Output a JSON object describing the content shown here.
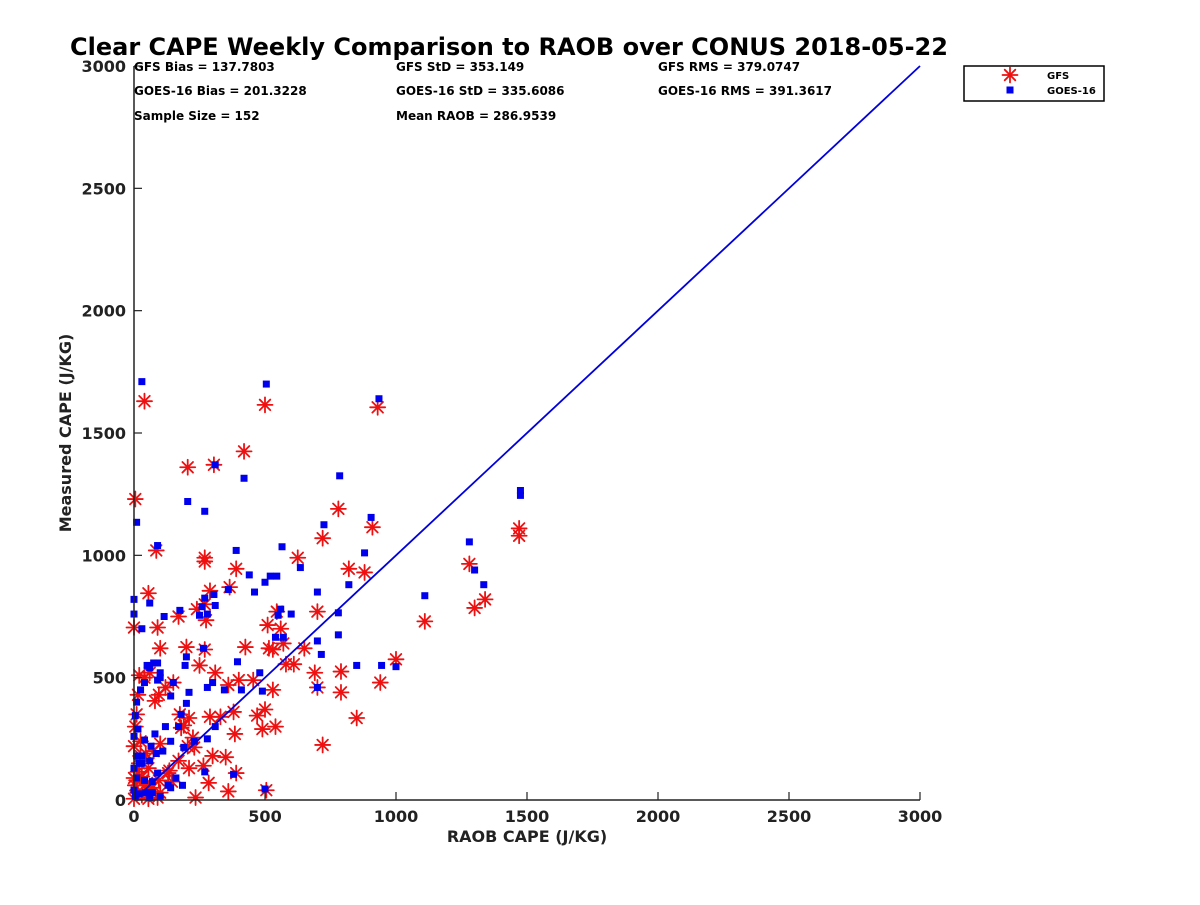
{
  "chart_data": {
    "type": "scatter",
    "title": "Clear CAPE Weekly Comparison to RAOB over CONUS 2018-05-22",
    "xlabel": "RAOB CAPE (J/KG)",
    "ylabel": "Measured CAPE (J/KG)",
    "xlim": [
      0,
      3000
    ],
    "ylim": [
      0,
      3000
    ],
    "x_ticks": [
      "0",
      "500",
      "1000",
      "1500",
      "2000",
      "2500",
      "3000"
    ],
    "y_ticks": [
      "0",
      "500",
      "1000",
      "1500",
      "2000",
      "2500",
      "3000"
    ],
    "stats": [
      "GFS Bias = 137.7803",
      "GFS StD = 353.149",
      "GFS RMS = 379.0747",
      "GOES-16 Bias = 201.3228",
      "GOES-16 StD = 335.6086",
      "GOES-16 RMS = 391.3617",
      "Sample Size = 152",
      "Mean RAOB = 286.9539"
    ],
    "legend_position": "top-right",
    "reference_line": [
      [
        0,
        0
      ],
      [
        3000,
        3000
      ]
    ],
    "reference_line_color": "#0000dd",
    "series": [
      {
        "name": "GFS",
        "marker": "asterisk",
        "color": "#ee1111",
        "points": [
          [
            5,
            1230
          ],
          [
            40,
            1630
          ],
          [
            500,
            1615
          ],
          [
            930,
            1605
          ],
          [
            420,
            1425
          ],
          [
            205,
            1360
          ],
          [
            305,
            1370
          ],
          [
            780,
            1190
          ],
          [
            910,
            1115
          ],
          [
            1470,
            1110
          ],
          [
            1470,
            1080
          ],
          [
            720,
            1070
          ],
          [
            85,
            1020
          ],
          [
            270,
            990
          ],
          [
            270,
            975
          ],
          [
            625,
            990
          ],
          [
            390,
            945
          ],
          [
            820,
            945
          ],
          [
            880,
            930
          ],
          [
            1280,
            965
          ],
          [
            365,
            870
          ],
          [
            290,
            855
          ],
          [
            55,
            845
          ],
          [
            270,
            800
          ],
          [
            240,
            780
          ],
          [
            510,
            715
          ],
          [
            545,
            770
          ],
          [
            560,
            700
          ],
          [
            700,
            770
          ],
          [
            1300,
            785
          ],
          [
            1340,
            820
          ],
          [
            1110,
            730
          ],
          [
            0,
            705
          ],
          [
            90,
            705
          ],
          [
            170,
            750
          ],
          [
            275,
            735
          ],
          [
            200,
            625
          ],
          [
            270,
            615
          ],
          [
            100,
            620
          ],
          [
            425,
            625
          ],
          [
            515,
            620
          ],
          [
            530,
            615
          ],
          [
            580,
            555
          ],
          [
            610,
            555
          ],
          [
            690,
            520
          ],
          [
            700,
            460
          ],
          [
            790,
            525
          ],
          [
            790,
            440
          ],
          [
            1000,
            575
          ],
          [
            940,
            480
          ],
          [
            850,
            335
          ],
          [
            720,
            225
          ],
          [
            530,
            450
          ],
          [
            455,
            490
          ],
          [
            400,
            490
          ],
          [
            360,
            470
          ],
          [
            310,
            520
          ],
          [
            290,
            340
          ],
          [
            250,
            550
          ],
          [
            210,
            335
          ],
          [
            190,
            305
          ],
          [
            225,
            255
          ],
          [
            205,
            220
          ],
          [
            175,
            350
          ],
          [
            150,
            480
          ],
          [
            120,
            460
          ],
          [
            95,
            430
          ],
          [
            80,
            405
          ],
          [
            60,
            520
          ],
          [
            40,
            500
          ],
          [
            20,
            510
          ],
          [
            15,
            430
          ],
          [
            10,
            350
          ],
          [
            5,
            300
          ],
          [
            0,
            220
          ],
          [
            25,
            240
          ],
          [
            45,
            190
          ],
          [
            75,
            200
          ],
          [
            100,
            230
          ],
          [
            135,
            120
          ],
          [
            145,
            75
          ],
          [
            210,
            130
          ],
          [
            265,
            140
          ],
          [
            285,
            70
          ],
          [
            380,
            360
          ],
          [
            385,
            270
          ],
          [
            500,
            370
          ],
          [
            490,
            290
          ],
          [
            350,
            175
          ],
          [
            390,
            110
          ],
          [
            360,
            35
          ],
          [
            505,
            40
          ],
          [
            235,
            10
          ],
          [
            90,
            10
          ],
          [
            60,
            25
          ],
          [
            30,
            20
          ],
          [
            15,
            30
          ],
          [
            5,
            60
          ],
          [
            0,
            90
          ],
          [
            20,
            150
          ],
          [
            55,
            130
          ],
          [
            95,
            80
          ],
          [
            130,
            110
          ],
          [
            170,
            160
          ],
          [
            230,
            215
          ],
          [
            300,
            180
          ],
          [
            55,
            5
          ],
          [
            100,
            30
          ],
          [
            0,
            5
          ],
          [
            10,
            80
          ],
          [
            180,
            295
          ],
          [
            330,
            340
          ],
          [
            470,
            345
          ],
          [
            540,
            300
          ],
          [
            570,
            640
          ],
          [
            650,
            620
          ],
          [
            70,
            50
          ],
          [
            40,
            60
          ],
          [
            15,
            115
          ],
          [
            25,
            180
          ],
          [
            30,
            95
          ],
          [
            50,
            70
          ]
        ]
      },
      {
        "name": "GOES-16",
        "marker": "square",
        "color": "#0000ee",
        "points": [
          [
            30,
            1710
          ],
          [
            505,
            1700
          ],
          [
            935,
            1640
          ],
          [
            420,
            1315
          ],
          [
            785,
            1325
          ],
          [
            1475,
            1265
          ],
          [
            1475,
            1245
          ],
          [
            205,
            1220
          ],
          [
            270,
            1180
          ],
          [
            905,
            1155
          ],
          [
            10,
            1135
          ],
          [
            725,
            1125
          ],
          [
            90,
            1040
          ],
          [
            390,
            1020
          ],
          [
            565,
            1035
          ],
          [
            880,
            1010
          ],
          [
            1280,
            1055
          ],
          [
            500,
            890
          ],
          [
            520,
            915
          ],
          [
            545,
            915
          ],
          [
            635,
            950
          ],
          [
            820,
            880
          ],
          [
            1300,
            940
          ],
          [
            1335,
            880
          ],
          [
            440,
            920
          ],
          [
            460,
            850
          ],
          [
            360,
            860
          ],
          [
            305,
            840
          ],
          [
            0,
            820
          ],
          [
            60,
            805
          ],
          [
            270,
            825
          ],
          [
            260,
            790
          ],
          [
            280,
            760
          ],
          [
            250,
            755
          ],
          [
            175,
            775
          ],
          [
            115,
            750
          ],
          [
            310,
            795
          ],
          [
            550,
            755
          ],
          [
            560,
            780
          ],
          [
            600,
            760
          ],
          [
            700,
            850
          ],
          [
            780,
            765
          ],
          [
            780,
            675
          ],
          [
            1110,
            835
          ],
          [
            30,
            700
          ],
          [
            265,
            620
          ],
          [
            200,
            585
          ],
          [
            395,
            565
          ],
          [
            570,
            665
          ],
          [
            540,
            665
          ],
          [
            700,
            650
          ],
          [
            715,
            595
          ],
          [
            850,
            550
          ],
          [
            945,
            550
          ],
          [
            1000,
            545
          ],
          [
            480,
            520
          ],
          [
            490,
            445
          ],
          [
            410,
            450
          ],
          [
            345,
            450
          ],
          [
            300,
            480
          ],
          [
            280,
            460
          ],
          [
            195,
            550
          ],
          [
            210,
            440
          ],
          [
            200,
            395
          ],
          [
            180,
            350
          ],
          [
            150,
            480
          ],
          [
            140,
            425
          ],
          [
            100,
            500
          ],
          [
            90,
            490
          ],
          [
            90,
            560
          ],
          [
            60,
            540
          ],
          [
            40,
            480
          ],
          [
            25,
            450
          ],
          [
            10,
            400
          ],
          [
            5,
            345
          ],
          [
            15,
            290
          ],
          [
            0,
            260
          ],
          [
            40,
            245
          ],
          [
            80,
            270
          ],
          [
            140,
            240
          ],
          [
            190,
            215
          ],
          [
            230,
            240
          ],
          [
            280,
            250
          ],
          [
            310,
            300
          ],
          [
            170,
            300
          ],
          [
            120,
            300
          ],
          [
            110,
            200
          ],
          [
            85,
            190
          ],
          [
            65,
            220
          ],
          [
            30,
            180
          ],
          [
            20,
            150
          ],
          [
            0,
            130
          ],
          [
            10,
            90
          ],
          [
            40,
            80
          ],
          [
            70,
            75
          ],
          [
            90,
            110
          ],
          [
            130,
            60
          ],
          [
            160,
            90
          ],
          [
            270,
            115
          ],
          [
            380,
            105
          ],
          [
            500,
            45
          ],
          [
            700,
            460
          ],
          [
            0,
            40
          ],
          [
            5,
            15
          ],
          [
            20,
            25
          ],
          [
            45,
            30
          ],
          [
            60,
            10
          ],
          [
            70,
            30
          ],
          [
            100,
            15
          ],
          [
            140,
            50
          ],
          [
            185,
            60
          ],
          [
            310,
            1370
          ],
          [
            0,
            760
          ],
          [
            10,
            180
          ],
          [
            30,
            150
          ],
          [
            60,
            160
          ],
          [
            50,
            550
          ],
          [
            75,
            560
          ],
          [
            100,
            520
          ]
        ]
      }
    ]
  }
}
